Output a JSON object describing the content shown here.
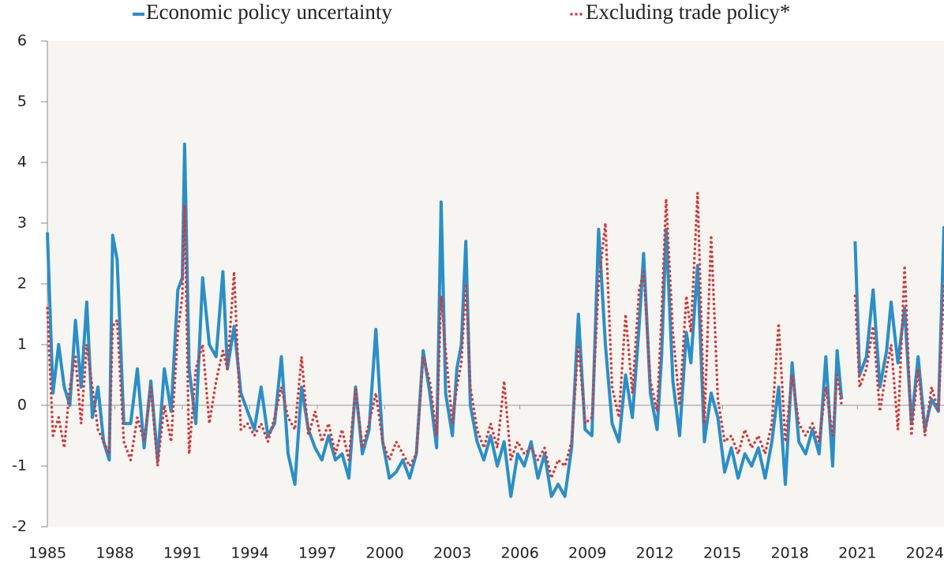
{
  "chart_data": {
    "type": "line",
    "x": [
      1985,
      1985.25,
      1985.5,
      1985.75,
      1986,
      1986.25,
      1986.5,
      1986.75,
      1987,
      1987.25,
      1987.5,
      1987.75,
      1987.9,
      1988.1,
      1988.4,
      1988.7,
      1989,
      1989.3,
      1989.6,
      1989.9,
      1990.2,
      1990.5,
      1990.8,
      1991,
      1991.1,
      1991.3,
      1991.6,
      1991.9,
      1992.2,
      1992.5,
      1992.8,
      1993,
      1993.3,
      1993.6,
      1993.9,
      1994.2,
      1994.5,
      1994.8,
      1995.1,
      1995.4,
      1995.7,
      1996,
      1996.3,
      1996.6,
      1996.9,
      1997.2,
      1997.5,
      1997.8,
      1998.1,
      1998.4,
      1998.7,
      1999,
      1999.3,
      1999.6,
      1999.9,
      2000.2,
      2000.5,
      2000.8,
      2001.1,
      2001.4,
      2001.7,
      2002,
      2002.3,
      2002.5,
      2002.7,
      2003,
      2003.2,
      2003.4,
      2003.6,
      2003.8,
      2004.1,
      2004.4,
      2004.7,
      2005,
      2005.3,
      2005.6,
      2005.9,
      2006.2,
      2006.5,
      2006.8,
      2007.1,
      2007.4,
      2007.7,
      2008,
      2008.3,
      2008.6,
      2008.9,
      2009.2,
      2009.5,
      2009.8,
      2010.1,
      2010.4,
      2010.7,
      2011,
      2011.3,
      2011.5,
      2011.8,
      2012.1,
      2012.3,
      2012.5,
      2012.8,
      2013.1,
      2013.4,
      2013.6,
      2013.9,
      2014.2,
      2014.5,
      2014.8,
      2015.1,
      2015.4,
      2015.7,
      2016,
      2016.3,
      2016.6,
      2016.9,
      2017.2,
      2017.5,
      2017.8,
      2018.1,
      2018.4,
      2018.7,
      2019,
      2019.3,
      2019.6,
      2019.9,
      2020.1,
      2020.3,
      2020.6,
      2020.9,
      2021.1,
      2021.4,
      2021.7,
      2022,
      2022.3,
      2022.5,
      2022.8,
      2023.1,
      2023.4,
      2023.7,
      2024,
      2024.3,
      2024.6,
      2024.85
    ],
    "series": [
      {
        "name": "Economic policy uncertainty",
        "color": "#2a8fc7",
        "style": "solid",
        "values": [
          2.85,
          0.2,
          1.0,
          0.3,
          0.0,
          1.4,
          0.3,
          1.7,
          -0.2,
          0.3,
          -0.6,
          -0.9,
          2.8,
          2.4,
          -0.3,
          -0.3,
          0.6,
          -0.7,
          0.4,
          -0.9,
          0.6,
          -0.1,
          1.9,
          2.1,
          4.3,
          0.6,
          -0.3,
          2.1,
          1.0,
          0.8,
          2.2,
          0.6,
          1.3,
          0.2,
          -0.1,
          -0.4,
          0.3,
          -0.5,
          -0.3,
          0.8,
          -0.8,
          -1.3,
          0.3,
          -0.4,
          -0.7,
          -0.9,
          -0.5,
          -0.9,
          -0.8,
          -1.2,
          0.3,
          -0.8,
          -0.4,
          1.25,
          -0.6,
          -1.2,
          -1.1,
          -0.9,
          -1.2,
          -0.8,
          0.9,
          0.2,
          -0.7,
          3.35,
          0.2,
          -0.5,
          0.6,
          1.0,
          2.7,
          0.0,
          -0.6,
          -0.9,
          -0.5,
          -1.0,
          -0.6,
          -1.5,
          -0.8,
          -1.0,
          -0.6,
          -1.2,
          -0.8,
          -1.5,
          -1.3,
          -1.5,
          -0.7,
          1.5,
          -0.4,
          -0.5,
          2.9,
          1.0,
          -0.3,
          -0.6,
          0.5,
          -0.2,
          1.3,
          2.5,
          0.2,
          -0.4,
          0.8,
          2.9,
          0.4,
          -0.5,
          1.2,
          0.7,
          2.3,
          -0.6,
          0.2,
          -0.2,
          -1.1,
          -0.7,
          -1.2,
          -0.8,
          -1.0,
          -0.7,
          -1.2,
          -0.6,
          0.3,
          -1.3,
          0.7,
          -0.6,
          -0.8,
          -0.4,
          -0.8,
          0.8,
          -1.0,
          0.9,
          0.1,
          null,
          2.7,
          0.5,
          0.8,
          1.9,
          0.3,
          0.9,
          1.7,
          0.7,
          1.6,
          -0.3,
          0.8,
          -0.4,
          0.1,
          -0.1,
          2.95
        ]
      },
      {
        "name": "Excluding trade policy*",
        "color": "#d43a3a",
        "style": "dotted",
        "values": [
          1.6,
          -0.5,
          -0.2,
          -0.7,
          0.3,
          0.8,
          -0.3,
          1.0,
          0.3,
          -0.4,
          -0.6,
          -0.8,
          1.3,
          1.4,
          -0.6,
          -0.9,
          -0.2,
          -0.6,
          0.3,
          -1.0,
          0.0,
          -0.6,
          1.2,
          1.8,
          3.3,
          -0.8,
          0.6,
          1.0,
          -0.3,
          0.4,
          0.9,
          0.6,
          2.2,
          -0.4,
          -0.3,
          -0.5,
          -0.3,
          -0.6,
          -0.2,
          0.3,
          -0.2,
          -0.4,
          0.8,
          -0.5,
          -0.1,
          -0.6,
          -0.3,
          -0.8,
          -0.4,
          -0.9,
          0.3,
          -0.7,
          -0.3,
          0.2,
          -0.6,
          -0.9,
          -0.6,
          -0.8,
          -1.0,
          -0.8,
          0.8,
          0.4,
          -0.5,
          1.8,
          0.9,
          -0.3,
          0.3,
          0.7,
          2.0,
          0.3,
          -0.4,
          -0.7,
          -0.3,
          -0.7,
          0.4,
          -0.9,
          -0.6,
          -0.8,
          -0.7,
          -0.9,
          -0.7,
          -1.2,
          -0.9,
          -1.0,
          -0.6,
          1.0,
          -0.3,
          -0.2,
          2.0,
          3.0,
          0.3,
          -0.2,
          1.5,
          0.2,
          1.9,
          2.2,
          0.4,
          -0.1,
          1.5,
          3.4,
          1.2,
          0.0,
          1.8,
          1.2,
          3.5,
          -0.3,
          2.8,
          0.1,
          -0.6,
          -0.5,
          -0.8,
          -0.4,
          -0.7,
          -0.5,
          -0.8,
          -0.3,
          1.35,
          -0.6,
          0.5,
          -0.3,
          -0.5,
          -0.3,
          -0.6,
          0.3,
          -0.5,
          0.5,
          0.0,
          null,
          1.8,
          0.3,
          0.6,
          1.3,
          -0.1,
          0.6,
          1.0,
          -0.4,
          2.3,
          -0.5,
          0.6,
          -0.5,
          0.3,
          -0.1,
          2.0
        ]
      }
    ],
    "xlim": [
      1985,
      2024.85
    ],
    "xticks": [
      1985,
      1988,
      1991,
      1994,
      1997,
      2000,
      2003,
      2006,
      2009,
      2012,
      2015,
      2018,
      2021,
      2024
    ],
    "ylim": [
      -2,
      6
    ],
    "yticks": [
      -2,
      -1,
      0,
      1,
      2,
      3,
      4,
      5,
      6
    ]
  }
}
